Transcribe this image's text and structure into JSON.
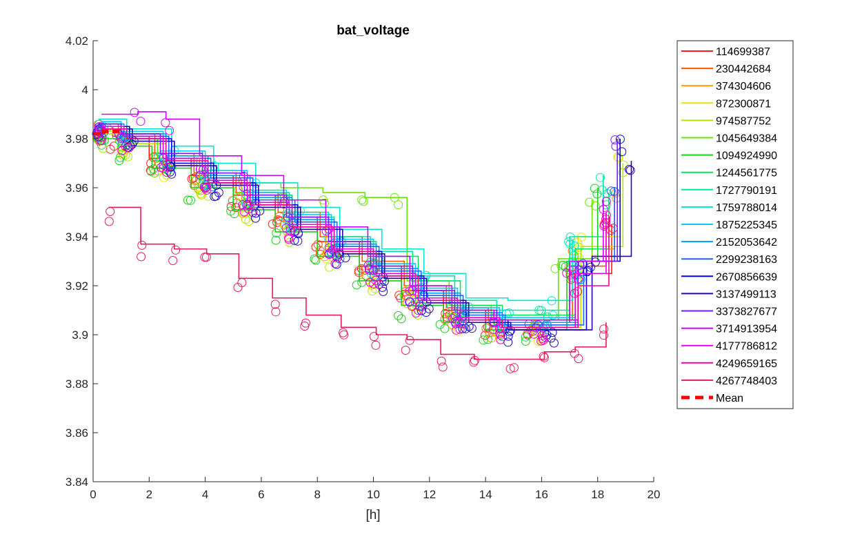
{
  "chart_data": {
    "type": "line",
    "title": "bat_voltage",
    "xlabel": "[h]",
    "ylabel": "",
    "xlim": [
      0,
      20
    ],
    "ylim": [
      3.84,
      4.02
    ],
    "xticks": [
      0,
      2,
      4,
      6,
      8,
      10,
      12,
      14,
      16,
      18,
      20
    ],
    "yticks": [
      3.84,
      3.86,
      3.88,
      3.9,
      3.92,
      3.94,
      3.96,
      3.98,
      4,
      4.02
    ],
    "ytick_labels": [
      "3.84",
      "3.86",
      "3.88",
      "3.9",
      "3.92",
      "3.94",
      "3.96",
      "3.98",
      "4",
      "4.02"
    ],
    "xtick_labels": [
      "0",
      "2",
      "4",
      "6",
      "8",
      "10",
      "12",
      "14",
      "16",
      "18",
      "20"
    ],
    "grid": false,
    "legend_position": "outside-right",
    "markers": "circles",
    "series": [
      {
        "name": "114699387",
        "color": "#ff1a1a",
        "x": [
          0.2,
          0.7,
          2.0,
          3.5,
          5.0,
          6.5,
          8.0,
          9.5,
          11.0,
          12.5,
          14.0,
          15.5,
          17.0,
          18.5
        ],
        "y": [
          3.985,
          3.981,
          3.972,
          3.965,
          3.957,
          3.948,
          3.938,
          3.928,
          3.918,
          3.91,
          3.905,
          3.905,
          3.925,
          3.945
        ]
      },
      {
        "name": "230442684",
        "color": "#ff5500",
        "x": [
          0.2,
          0.9,
          2.2,
          3.6,
          5.1,
          6.6,
          8.1,
          9.6,
          11.1,
          12.6,
          14.1,
          15.6,
          17.1,
          18.3
        ],
        "y": [
          3.986,
          3.982,
          3.974,
          3.966,
          3.958,
          3.95,
          3.94,
          3.93,
          3.92,
          3.911,
          3.906,
          3.906,
          3.928,
          3.95
        ]
      },
      {
        "name": "374304606",
        "color": "#ff9900",
        "x": [
          0.3,
          1.0,
          2.3,
          3.8,
          5.3,
          6.8,
          8.3,
          9.8,
          11.3,
          12.8,
          14.3,
          15.8,
          17.2,
          18.6
        ],
        "y": [
          3.984,
          3.98,
          3.972,
          3.963,
          3.955,
          3.946,
          3.936,
          3.926,
          3.916,
          3.909,
          3.904,
          3.904,
          3.935,
          3.96
        ]
      },
      {
        "name": "872300871",
        "color": "#e6e600",
        "x": [
          0.2,
          1.1,
          2.5,
          3.9,
          5.4,
          6.9,
          8.4,
          9.9,
          11.4,
          12.9,
          14.4,
          15.9,
          17.3,
          18.8
        ],
        "y": [
          3.983,
          3.979,
          3.97,
          3.962,
          3.953,
          3.944,
          3.934,
          3.924,
          3.914,
          3.907,
          3.903,
          3.903,
          3.94,
          3.978
        ]
      },
      {
        "name": "974587752",
        "color": "#b3e600",
        "x": [
          0.3,
          1.2,
          2.6,
          4.0,
          5.5,
          7.0,
          8.5,
          10.0,
          11.5,
          13.0,
          14.5,
          16.0,
          17.4,
          18.9
        ],
        "y": [
          3.982,
          3.978,
          3.969,
          3.961,
          3.952,
          3.943,
          3.933,
          3.923,
          3.913,
          3.906,
          3.903,
          3.903,
          3.936,
          3.97
        ]
      },
      {
        "name": "1045649384",
        "color": "#66e600",
        "x": [
          0.2,
          1.0,
          2.3,
          3.7,
          5.2,
          6.7,
          8.2,
          9.7,
          10.8,
          11.2,
          12.7,
          14.2,
          15.7,
          16.6,
          17.8
        ],
        "y": [
          3.984,
          3.98,
          3.972,
          3.964,
          3.962,
          3.96,
          3.958,
          3.956,
          3.956,
          3.922,
          3.912,
          3.906,
          3.906,
          3.931,
          3.955
        ]
      },
      {
        "name": "1094924990",
        "color": "#1acc1a",
        "x": [
          0.2,
          0.9,
          2.1,
          3.5,
          5.0,
          6.5,
          8.0,
          9.5,
          11.0,
          12.5,
          14.0,
          15.5,
          16.9,
          18.0
        ],
        "y": [
          3.98,
          3.977,
          3.968,
          3.96,
          3.951,
          3.942,
          3.932,
          3.922,
          3.912,
          3.905,
          3.902,
          3.902,
          3.93,
          3.96
        ]
      },
      {
        "name": "1244561775",
        "color": "#00e660",
        "x": [
          0.4,
          1.3,
          2.7,
          4.1,
          5.6,
          7.1,
          8.6,
          10.1,
          11.6,
          13.1,
          14.6,
          16.1,
          17.2,
          18.4
        ],
        "y": [
          3.985,
          3.981,
          3.973,
          3.965,
          3.957,
          3.948,
          3.938,
          3.932,
          3.922,
          3.912,
          3.908,
          3.908,
          3.935,
          3.958
        ]
      },
      {
        "name": "1727790191",
        "color": "#00e6a0",
        "x": [
          0.3,
          1.1,
          2.4,
          3.9,
          5.4,
          6.9,
          8.4,
          9.9,
          11.4,
          12.9,
          14.4,
          15.9,
          17.0,
          18.2
        ],
        "y": [
          3.986,
          3.982,
          3.975,
          3.967,
          3.959,
          3.95,
          3.94,
          3.934,
          3.924,
          3.914,
          3.91,
          3.91,
          3.94,
          3.965
        ]
      },
      {
        "name": "1759788014",
        "color": "#00e6d2",
        "x": [
          0.2,
          1.2,
          2.8,
          4.3,
          5.8,
          7.3,
          8.8,
          10.3,
          11.8,
          13.3,
          14.8,
          16.3,
          17.1
        ],
        "y": [
          3.988,
          3.984,
          3.977,
          3.97,
          3.962,
          3.952,
          3.943,
          3.935,
          3.925,
          3.915,
          3.914,
          3.914,
          3.938
        ]
      },
      {
        "name": "1875225345",
        "color": "#00ccff",
        "x": [
          0.3,
          1.0,
          2.5,
          4.0,
          5.5,
          7.0,
          8.5,
          10.0,
          11.5,
          13.0,
          14.5,
          16.0,
          17.2
        ],
        "y": [
          3.987,
          3.983,
          3.975,
          3.967,
          3.958,
          3.949,
          3.939,
          3.929,
          3.919,
          3.911,
          3.907,
          3.907,
          3.93
        ]
      },
      {
        "name": "2152053642",
        "color": "#0099ff",
        "x": [
          0.2,
          1.1,
          2.6,
          4.1,
          5.6,
          7.1,
          8.6,
          10.1,
          11.6,
          13.1,
          14.6,
          16.1,
          17.3
        ],
        "y": [
          3.986,
          3.982,
          3.973,
          3.965,
          3.956,
          3.947,
          3.937,
          3.927,
          3.917,
          3.909,
          3.905,
          3.905,
          3.927
        ]
      },
      {
        "name": "2299238163",
        "color": "#1a66ff",
        "x": [
          0.3,
          1.2,
          2.7,
          4.2,
          5.7,
          7.2,
          8.7,
          10.2,
          11.7,
          13.2,
          14.7,
          16.2,
          17.5,
          18.6
        ],
        "y": [
          3.985,
          3.981,
          3.972,
          3.964,
          3.955,
          3.946,
          3.936,
          3.926,
          3.916,
          3.908,
          3.904,
          3.904,
          3.93,
          3.96
        ]
      },
      {
        "name": "2670856639",
        "color": "#0000e6",
        "x": [
          0.2,
          1.3,
          2.8,
          4.3,
          5.8,
          7.3,
          8.8,
          10.3,
          11.8,
          13.3,
          14.8,
          16.3,
          17.6,
          18.8
        ],
        "y": [
          3.985,
          3.98,
          3.97,
          3.962,
          3.953,
          3.944,
          3.934,
          3.924,
          3.914,
          3.906,
          3.902,
          3.902,
          3.93,
          3.98
        ]
      },
      {
        "name": "3137499113",
        "color": "#2a00b3",
        "x": [
          0.3,
          1.4,
          2.9,
          4.4,
          5.9,
          7.4,
          8.9,
          10.4,
          11.9,
          13.4,
          14.9,
          16.4,
          17.8,
          19.2
        ],
        "y": [
          3.984,
          3.979,
          3.969,
          3.961,
          3.952,
          3.943,
          3.933,
          3.923,
          3.913,
          3.905,
          3.902,
          3.902,
          3.932,
          3.971
        ]
      },
      {
        "name": "3373827677",
        "color": "#7a1aff",
        "x": [
          0.2,
          1.0,
          2.4,
          3.9,
          5.4,
          6.9,
          8.4,
          9.9,
          11.4,
          12.9,
          14.4,
          15.9,
          17.3,
          18.7
        ],
        "y": [
          3.986,
          3.982,
          3.974,
          3.966,
          3.957,
          3.948,
          3.938,
          3.928,
          3.918,
          3.91,
          3.906,
          3.906,
          3.93,
          3.98
        ]
      },
      {
        "name": "3714913954",
        "color": "#cc00ff",
        "x": [
          0.3,
          1.6,
          2.6,
          3.8,
          5.3,
          6.8,
          8.3,
          9.8,
          11.3,
          12.8,
          14.3,
          15.8,
          17.0,
          18.2
        ],
        "y": [
          3.99,
          3.991,
          3.988,
          3.973,
          3.965,
          3.955,
          3.944,
          3.932,
          3.92,
          3.91,
          3.906,
          3.906,
          3.93,
          3.955
        ]
      },
      {
        "name": "4177786812",
        "color": "#e600e6",
        "x": [
          0.2,
          1.1,
          2.5,
          4.0,
          5.5,
          7.0,
          8.5,
          10.0,
          11.5,
          13.0,
          14.5,
          16.0,
          17.2,
          18.3
        ],
        "y": [
          3.985,
          3.981,
          3.972,
          3.963,
          3.954,
          3.945,
          3.935,
          3.925,
          3.915,
          3.907,
          3.903,
          3.903,
          3.925,
          3.95
        ]
      },
      {
        "name": "4249659165",
        "color": "#f0009b",
        "x": [
          0.3,
          1.2,
          2.6,
          4.1,
          5.6,
          7.1,
          8.6,
          10.1,
          11.6,
          13.1,
          14.6,
          16.1,
          17.3,
          18.4
        ],
        "y": [
          3.984,
          3.98,
          3.971,
          3.962,
          3.953,
          3.944,
          3.934,
          3.924,
          3.914,
          3.906,
          3.903,
          3.903,
          3.92,
          3.948
        ]
      },
      {
        "name": "4267748403",
        "color": "#e6195a",
        "x": [
          0.55,
          1.7,
          2.9,
          4.05,
          5.2,
          6.4,
          7.6,
          8.85,
          10.1,
          11.2,
          12.4,
          13.6,
          14.9,
          16.1,
          17.2,
          18.3
        ],
        "y": [
          3.952,
          3.937,
          3.935,
          3.933,
          3.923,
          3.915,
          3.908,
          3.903,
          3.9,
          3.898,
          3.892,
          3.89,
          3.89,
          3.893,
          3.895,
          3.905
        ]
      },
      {
        "name": "Mean",
        "color": "#ff0000",
        "style": "dashed",
        "x": [
          0.0,
          0.3,
          0.6,
          0.9,
          1.1
        ],
        "y": [
          3.982,
          3.983,
          3.983,
          3.983,
          3.983
        ]
      }
    ]
  }
}
